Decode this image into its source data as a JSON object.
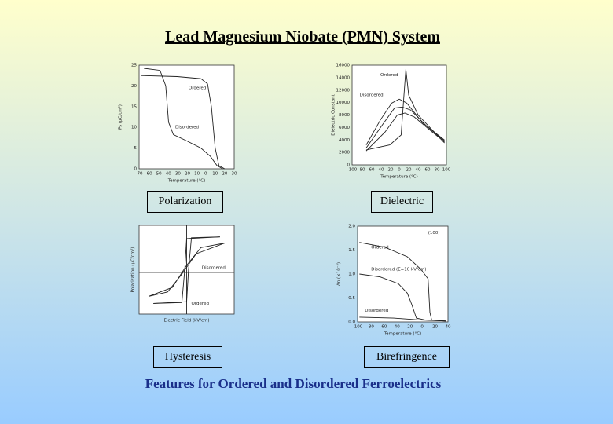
{
  "title": "Lead Magnesium Niobate (PMN) System",
  "panels": [
    {
      "caption": "Polarization",
      "y_label": "Ps (μC/cm²)",
      "x_label": "Temperature (°C)",
      "y_ticks": [
        "25",
        "20",
        "15",
        "10",
        "5",
        "0"
      ],
      "x_ticks": [
        "-70",
        "-60",
        "-50",
        "-40",
        "-30",
        "-20",
        "-10",
        "0",
        "10",
        "20",
        "30"
      ],
      "annotations": [
        "Ordered",
        "Disordered"
      ]
    },
    {
      "caption": "Dielectric",
      "y_label": "Dielectric Constant",
      "x_label": "Temperature (°C)",
      "y_ticks": [
        "16000",
        "14000",
        "12000",
        "10000",
        "8000",
        "6000",
        "4000",
        "2000",
        "0"
      ],
      "x_ticks": [
        "-100",
        "-80",
        "-60",
        "-40",
        "-20",
        "0",
        "20",
        "40",
        "60",
        "80",
        "100"
      ],
      "annotations": [
        "Ordered",
        "Disordered"
      ]
    },
    {
      "caption": "Hysteresis",
      "y_label": "Polarization (μC/cm²)",
      "x_label": "Electric Field (kV/cm)",
      "y_ticks": [],
      "x_ticks": [],
      "annotations": [
        "Disordered",
        "Ordered"
      ]
    },
    {
      "caption": "Birefringence",
      "y_label": "Δn (×10⁻³)",
      "x_label": "Temperature (°C)",
      "y_ticks": [
        "2.0",
        "1.5",
        "1.0",
        "0.5",
        "0.0"
      ],
      "x_ticks": [
        "-100",
        "-80",
        "-60",
        "-40",
        "-20",
        "0",
        "20",
        "40"
      ],
      "annotations": [
        "(100)",
        "Ordered",
        "Disordered (E=10 kV/cm)",
        "Disordered"
      ]
    }
  ],
  "footer": "Features for Ordered and Disordered Ferroelectrics"
}
